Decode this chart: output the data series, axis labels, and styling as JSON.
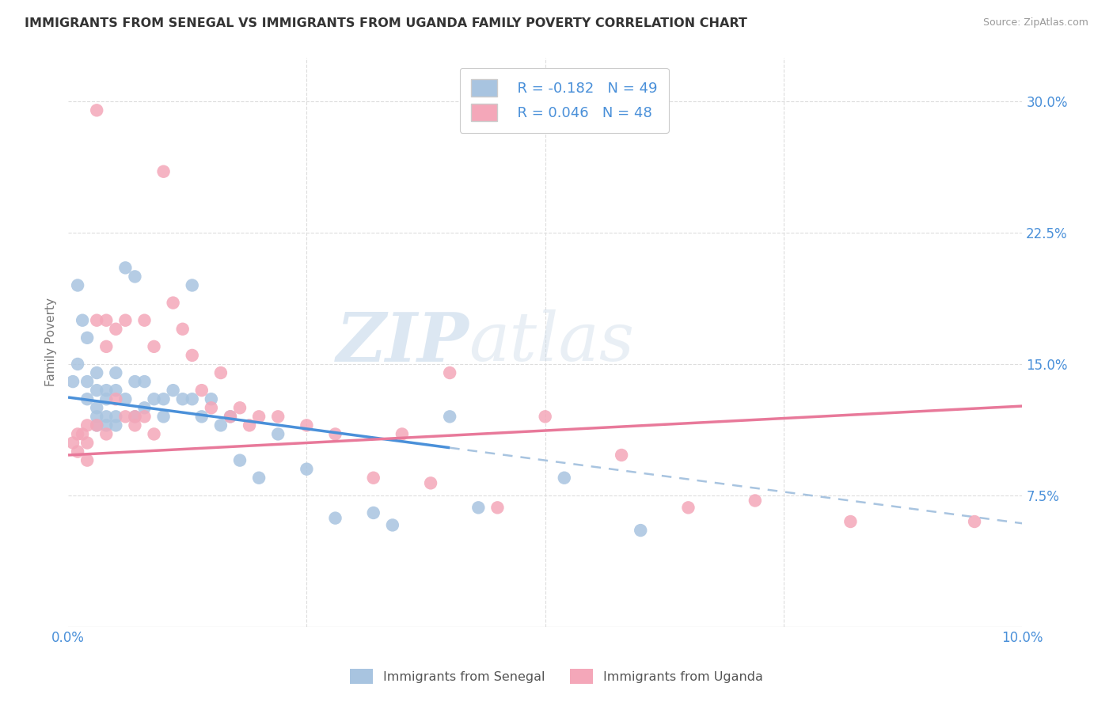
{
  "title": "IMMIGRANTS FROM SENEGAL VS IMMIGRANTS FROM UGANDA FAMILY POVERTY CORRELATION CHART",
  "source": "Source: ZipAtlas.com",
  "ylabel": "Family Poverty",
  "yticks": [
    0.075,
    0.15,
    0.225,
    0.3
  ],
  "ytick_labels": [
    "7.5%",
    "15.0%",
    "22.5%",
    "30.0%"
  ],
  "xlim": [
    0.0,
    0.1
  ],
  "ylim": [
    0.0,
    0.325
  ],
  "senegal_color": "#a8c4e0",
  "uganda_color": "#f4a7b9",
  "senegal_line_color": "#4a90d9",
  "uganda_line_color": "#e8799a",
  "dashed_line_color": "#a8c4e0",
  "senegal_R": -0.182,
  "senegal_N": 49,
  "uganda_R": 0.046,
  "uganda_N": 48,
  "senegal_x": [
    0.0005,
    0.001,
    0.001,
    0.0015,
    0.002,
    0.002,
    0.002,
    0.003,
    0.003,
    0.003,
    0.003,
    0.003,
    0.004,
    0.004,
    0.004,
    0.004,
    0.005,
    0.005,
    0.005,
    0.005,
    0.006,
    0.006,
    0.007,
    0.007,
    0.007,
    0.008,
    0.008,
    0.009,
    0.01,
    0.01,
    0.011,
    0.012,
    0.013,
    0.013,
    0.014,
    0.015,
    0.016,
    0.017,
    0.018,
    0.02,
    0.022,
    0.025,
    0.028,
    0.032,
    0.034,
    0.04,
    0.043,
    0.052,
    0.06
  ],
  "senegal_y": [
    0.14,
    0.195,
    0.15,
    0.175,
    0.165,
    0.14,
    0.13,
    0.145,
    0.135,
    0.125,
    0.12,
    0.115,
    0.135,
    0.13,
    0.12,
    0.115,
    0.145,
    0.135,
    0.12,
    0.115,
    0.205,
    0.13,
    0.2,
    0.14,
    0.12,
    0.14,
    0.125,
    0.13,
    0.13,
    0.12,
    0.135,
    0.13,
    0.195,
    0.13,
    0.12,
    0.13,
    0.115,
    0.12,
    0.095,
    0.085,
    0.11,
    0.09,
    0.062,
    0.065,
    0.058,
    0.12,
    0.068,
    0.085,
    0.055
  ],
  "uganda_x": [
    0.0005,
    0.001,
    0.001,
    0.0015,
    0.002,
    0.002,
    0.002,
    0.003,
    0.003,
    0.003,
    0.004,
    0.004,
    0.004,
    0.005,
    0.005,
    0.006,
    0.006,
    0.007,
    0.007,
    0.008,
    0.008,
    0.009,
    0.009,
    0.01,
    0.011,
    0.012,
    0.013,
    0.014,
    0.015,
    0.016,
    0.017,
    0.018,
    0.019,
    0.02,
    0.022,
    0.025,
    0.028,
    0.032,
    0.035,
    0.038,
    0.04,
    0.045,
    0.05,
    0.058,
    0.065,
    0.072,
    0.082,
    0.095
  ],
  "uganda_y": [
    0.105,
    0.11,
    0.1,
    0.11,
    0.115,
    0.105,
    0.095,
    0.295,
    0.175,
    0.115,
    0.175,
    0.16,
    0.11,
    0.17,
    0.13,
    0.175,
    0.12,
    0.12,
    0.115,
    0.175,
    0.12,
    0.16,
    0.11,
    0.26,
    0.185,
    0.17,
    0.155,
    0.135,
    0.125,
    0.145,
    0.12,
    0.125,
    0.115,
    0.12,
    0.12,
    0.115,
    0.11,
    0.085,
    0.11,
    0.082,
    0.145,
    0.068,
    0.12,
    0.098,
    0.068,
    0.072,
    0.06,
    0.06
  ],
  "watermark_zip": "ZIP",
  "watermark_atlas": "atlas",
  "background_color": "#ffffff",
  "grid_color": "#dddddd",
  "tick_label_color": "#4a90d9",
  "legend_label_color": "#4a90d9",
  "senegal_line_intercept": 0.131,
  "senegal_line_slope": -0.72,
  "uganda_line_intercept": 0.098,
  "uganda_line_slope": 0.28
}
